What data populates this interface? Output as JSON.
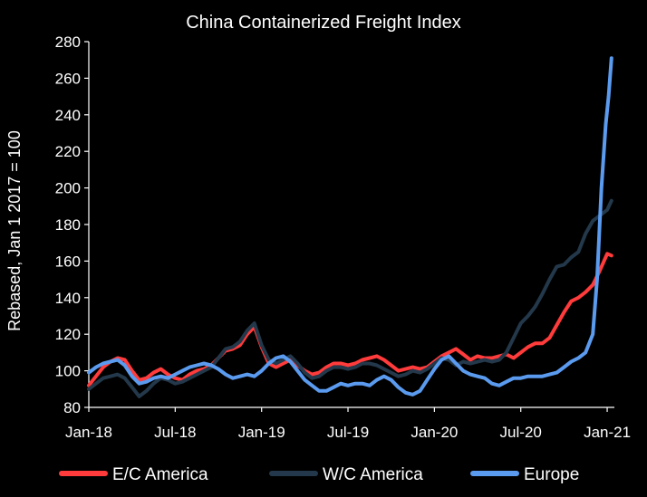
{
  "chart_data": {
    "type": "line",
    "title": "China Containerized Freight Index",
    "xlabel": "",
    "ylabel": "Rebased, Jan 1 2017 = 100",
    "ylim": [
      80,
      280
    ],
    "yticks": [
      80,
      100,
      120,
      140,
      160,
      180,
      200,
      220,
      240,
      260,
      280
    ],
    "xlim": [
      0,
      36.5
    ],
    "xticks": [
      {
        "label": "Jan-18",
        "x": 0
      },
      {
        "label": "Jul-18",
        "x": 6
      },
      {
        "label": "Jan-19",
        "x": 12
      },
      {
        "label": "Jul-19",
        "x": 18
      },
      {
        "label": "Jan-20",
        "x": 24
      },
      {
        "label": "Jul-20",
        "x": 30
      },
      {
        "label": "Jan-21",
        "x": 36
      }
    ],
    "x_unit": "months since Jan 2018",
    "legend_position": "bottom",
    "series": [
      {
        "name": "E/C America",
        "color": "#ff3b3b",
        "points": [
          [
            0,
            92
          ],
          [
            0.5,
            97
          ],
          [
            1,
            102
          ],
          [
            1.5,
            105
          ],
          [
            2,
            107
          ],
          [
            2.5,
            106
          ],
          [
            3,
            100
          ],
          [
            3.5,
            95
          ],
          [
            4,
            96
          ],
          [
            4.5,
            99
          ],
          [
            5,
            101
          ],
          [
            5.5,
            98
          ],
          [
            6,
            96
          ],
          [
            6.5,
            95
          ],
          [
            7,
            98
          ],
          [
            7.5,
            100
          ],
          [
            8,
            101
          ],
          [
            8.5,
            103
          ],
          [
            9,
            107
          ],
          [
            9.5,
            111
          ],
          [
            10,
            112
          ],
          [
            10.5,
            114
          ],
          [
            11,
            120
          ],
          [
            11.5,
            124
          ],
          [
            12,
            113
          ],
          [
            12.5,
            104
          ],
          [
            13,
            102
          ],
          [
            13.5,
            104
          ],
          [
            14,
            106
          ],
          [
            14.5,
            103
          ],
          [
            15,
            100
          ],
          [
            15.5,
            98
          ],
          [
            16,
            99
          ],
          [
            16.5,
            102
          ],
          [
            17,
            104
          ],
          [
            17.5,
            104
          ],
          [
            18,
            103
          ],
          [
            18.5,
            104
          ],
          [
            19,
            106
          ],
          [
            19.5,
            107
          ],
          [
            20,
            108
          ],
          [
            20.5,
            106
          ],
          [
            21,
            103
          ],
          [
            21.5,
            100
          ],
          [
            22,
            101
          ],
          [
            22.5,
            102
          ],
          [
            23,
            101
          ],
          [
            23.5,
            102
          ],
          [
            24,
            105
          ],
          [
            24.5,
            108
          ],
          [
            25,
            110
          ],
          [
            25.5,
            112
          ],
          [
            26,
            109
          ],
          [
            26.5,
            106
          ],
          [
            27,
            108
          ],
          [
            27.5,
            107
          ],
          [
            28,
            107
          ],
          [
            28.5,
            108
          ],
          [
            29,
            109
          ],
          [
            29.5,
            107
          ],
          [
            30,
            110
          ],
          [
            30.5,
            113
          ],
          [
            31,
            115
          ],
          [
            31.5,
            115
          ],
          [
            32,
            118
          ],
          [
            32.5,
            125
          ],
          [
            33,
            132
          ],
          [
            33.5,
            138
          ],
          [
            34,
            140
          ],
          [
            34.5,
            143
          ],
          [
            35,
            147
          ],
          [
            35.5,
            155
          ],
          [
            36,
            164
          ],
          [
            36.3,
            163
          ]
        ]
      },
      {
        "name": "W/C America",
        "color": "#23384a",
        "points": [
          [
            0,
            90
          ],
          [
            0.5,
            93
          ],
          [
            1,
            96
          ],
          [
            1.5,
            97
          ],
          [
            2,
            98
          ],
          [
            2.5,
            96
          ],
          [
            3,
            91
          ],
          [
            3.5,
            86
          ],
          [
            4,
            89
          ],
          [
            4.5,
            93
          ],
          [
            5,
            96
          ],
          [
            5.5,
            95
          ],
          [
            6,
            93
          ],
          [
            6.5,
            94
          ],
          [
            7,
            96
          ],
          [
            7.5,
            98
          ],
          [
            8,
            100
          ],
          [
            8.5,
            102
          ],
          [
            9,
            107
          ],
          [
            9.5,
            112
          ],
          [
            10,
            113
          ],
          [
            10.5,
            116
          ],
          [
            11,
            122
          ],
          [
            11.5,
            126
          ],
          [
            12,
            114
          ],
          [
            12.5,
            106
          ],
          [
            13,
            104
          ],
          [
            13.5,
            106
          ],
          [
            14,
            108
          ],
          [
            14.5,
            104
          ],
          [
            15,
            99
          ],
          [
            15.5,
            96
          ],
          [
            16,
            97
          ],
          [
            16.5,
            100
          ],
          [
            17,
            102
          ],
          [
            17.5,
            102
          ],
          [
            18,
            101
          ],
          [
            18.5,
            102
          ],
          [
            19,
            104
          ],
          [
            19.5,
            104
          ],
          [
            20,
            103
          ],
          [
            20.5,
            101
          ],
          [
            21,
            99
          ],
          [
            21.5,
            97
          ],
          [
            22,
            98
          ],
          [
            22.5,
            100
          ],
          [
            23,
            99
          ],
          [
            23.5,
            101
          ],
          [
            24,
            104
          ],
          [
            24.5,
            107
          ],
          [
            25,
            106
          ],
          [
            25.5,
            103
          ],
          [
            26,
            105
          ],
          [
            26.5,
            104
          ],
          [
            27,
            105
          ],
          [
            27.5,
            106
          ],
          [
            28,
            105
          ],
          [
            28.5,
            106
          ],
          [
            29,
            110
          ],
          [
            29.5,
            118
          ],
          [
            30,
            126
          ],
          [
            30.5,
            130
          ],
          [
            31,
            135
          ],
          [
            31.5,
            142
          ],
          [
            32,
            150
          ],
          [
            32.5,
            157
          ],
          [
            33,
            158
          ],
          [
            33.5,
            162
          ],
          [
            34,
            165
          ],
          [
            34.5,
            175
          ],
          [
            35,
            182
          ],
          [
            35.5,
            185
          ],
          [
            36,
            188
          ],
          [
            36.3,
            193
          ]
        ]
      },
      {
        "name": "Europe",
        "color": "#5b9bef",
        "points": [
          [
            0,
            99
          ],
          [
            0.5,
            102
          ],
          [
            1,
            104
          ],
          [
            1.5,
            105
          ],
          [
            2,
            106
          ],
          [
            2.5,
            103
          ],
          [
            3,
            97
          ],
          [
            3.5,
            93
          ],
          [
            4,
            94
          ],
          [
            4.5,
            96
          ],
          [
            5,
            97
          ],
          [
            5.5,
            96
          ],
          [
            6,
            98
          ],
          [
            6.5,
            100
          ],
          [
            7,
            102
          ],
          [
            7.5,
            103
          ],
          [
            8,
            104
          ],
          [
            8.5,
            103
          ],
          [
            9,
            101
          ],
          [
            9.5,
            98
          ],
          [
            10,
            96
          ],
          [
            10.5,
            97
          ],
          [
            11,
            98
          ],
          [
            11.5,
            97
          ],
          [
            12,
            100
          ],
          [
            12.5,
            104
          ],
          [
            13,
            107
          ],
          [
            13.5,
            108
          ],
          [
            14,
            105
          ],
          [
            14.5,
            100
          ],
          [
            15,
            95
          ],
          [
            15.5,
            92
          ],
          [
            16,
            89
          ],
          [
            16.5,
            89
          ],
          [
            17,
            91
          ],
          [
            17.5,
            93
          ],
          [
            18,
            92
          ],
          [
            18.5,
            93
          ],
          [
            19,
            93
          ],
          [
            19.5,
            92
          ],
          [
            20,
            95
          ],
          [
            20.5,
            97
          ],
          [
            21,
            95
          ],
          [
            21.5,
            91
          ],
          [
            22,
            88
          ],
          [
            22.5,
            87
          ],
          [
            23,
            89
          ],
          [
            23.5,
            95
          ],
          [
            24,
            101
          ],
          [
            24.5,
            106
          ],
          [
            25,
            108
          ],
          [
            25.5,
            104
          ],
          [
            26,
            100
          ],
          [
            26.5,
            98
          ],
          [
            27,
            97
          ],
          [
            27.5,
            96
          ],
          [
            28,
            93
          ],
          [
            28.5,
            92
          ],
          [
            29,
            94
          ],
          [
            29.5,
            96
          ],
          [
            30,
            96
          ],
          [
            30.5,
            97
          ],
          [
            31,
            97
          ],
          [
            31.5,
            97
          ],
          [
            32,
            98
          ],
          [
            32.5,
            99
          ],
          [
            33,
            102
          ],
          [
            33.5,
            105
          ],
          [
            34,
            107
          ],
          [
            34.5,
            110
          ],
          [
            35,
            120
          ],
          [
            35.3,
            150
          ],
          [
            35.6,
            200
          ],
          [
            35.9,
            235
          ],
          [
            36.1,
            250
          ],
          [
            36.3,
            271
          ]
        ]
      }
    ]
  }
}
